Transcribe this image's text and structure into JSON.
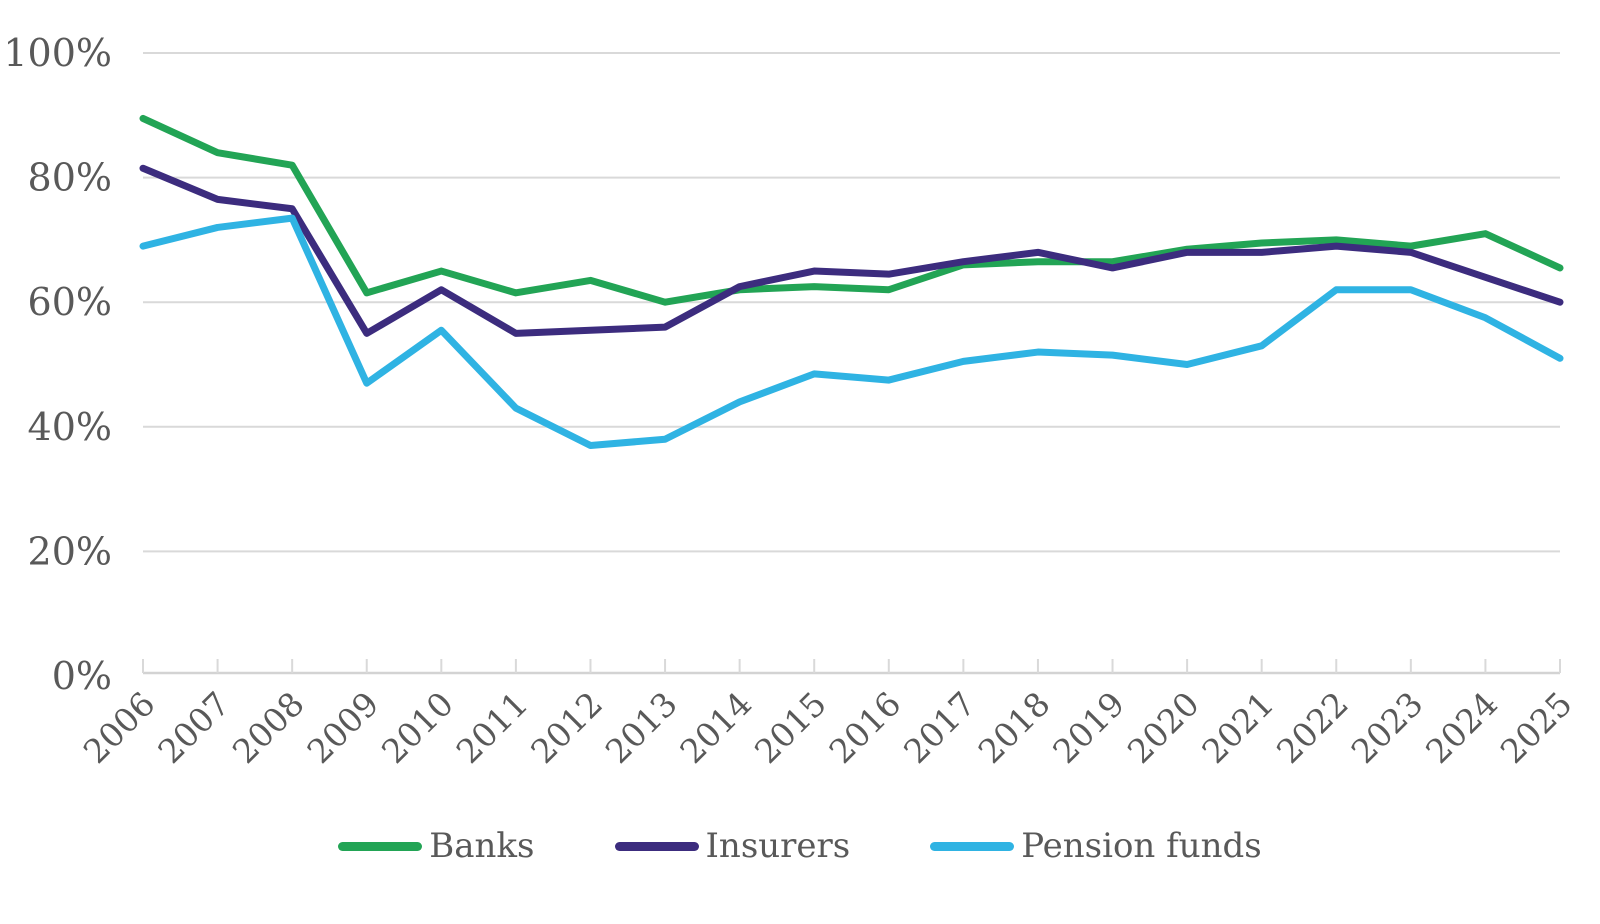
{
  "chart_data": {
    "type": "line",
    "title": "",
    "x": [
      2006,
      2007,
      2008,
      2009,
      2010,
      2011,
      2012,
      2013,
      2014,
      2015,
      2016,
      2017,
      2018,
      2019,
      2020,
      2021,
      2022,
      2023,
      2024,
      2025
    ],
    "series": [
      {
        "name": "Banks",
        "color": "#22A455",
        "values": [
          89.5,
          84,
          82,
          61.5,
          65,
          61.5,
          63.5,
          60,
          62,
          62.5,
          62,
          66,
          66.5,
          66.5,
          68.5,
          69.5,
          70,
          69,
          71,
          65.5
        ]
      },
      {
        "name": "Insurers",
        "color": "#3C2C7E",
        "values": [
          81.5,
          76.5,
          75,
          55,
          62,
          55,
          55.5,
          56,
          62.5,
          65,
          64.5,
          66.5,
          68,
          65.5,
          68,
          68,
          69,
          68,
          64,
          60
        ]
      },
      {
        "name": "Pension funds",
        "color": "#2FB3E3",
        "values": [
          69,
          72,
          73.5,
          47,
          55.5,
          43,
          37,
          38,
          44,
          48.5,
          47.5,
          50.5,
          52,
          51.5,
          50,
          53,
          62,
          62,
          57.5,
          51
        ]
      }
    ],
    "y_axis": {
      "min": 0,
      "max": 100,
      "tick_step": 20,
      "tick_labels": [
        "0%",
        "20%",
        "40%",
        "60%",
        "80%",
        "100%"
      ],
      "unit": "%"
    },
    "x_axis": {
      "tick_labels": [
        "2006",
        "2007",
        "2008",
        "2009",
        "2010",
        "2011",
        "2012",
        "2013",
        "2014",
        "2015",
        "2016",
        "2017",
        "2018",
        "2019",
        "2020",
        "2021",
        "2022",
        "2023",
        "2024",
        "2025"
      ]
    },
    "legend_position": "bottom",
    "grid": "horizontal-only",
    "colors": {
      "grid_line": "#D9D9D9",
      "axis_line": "#D3D3D3",
      "tick_mark": "#D9D9D9",
      "label_text": "#595959"
    }
  }
}
